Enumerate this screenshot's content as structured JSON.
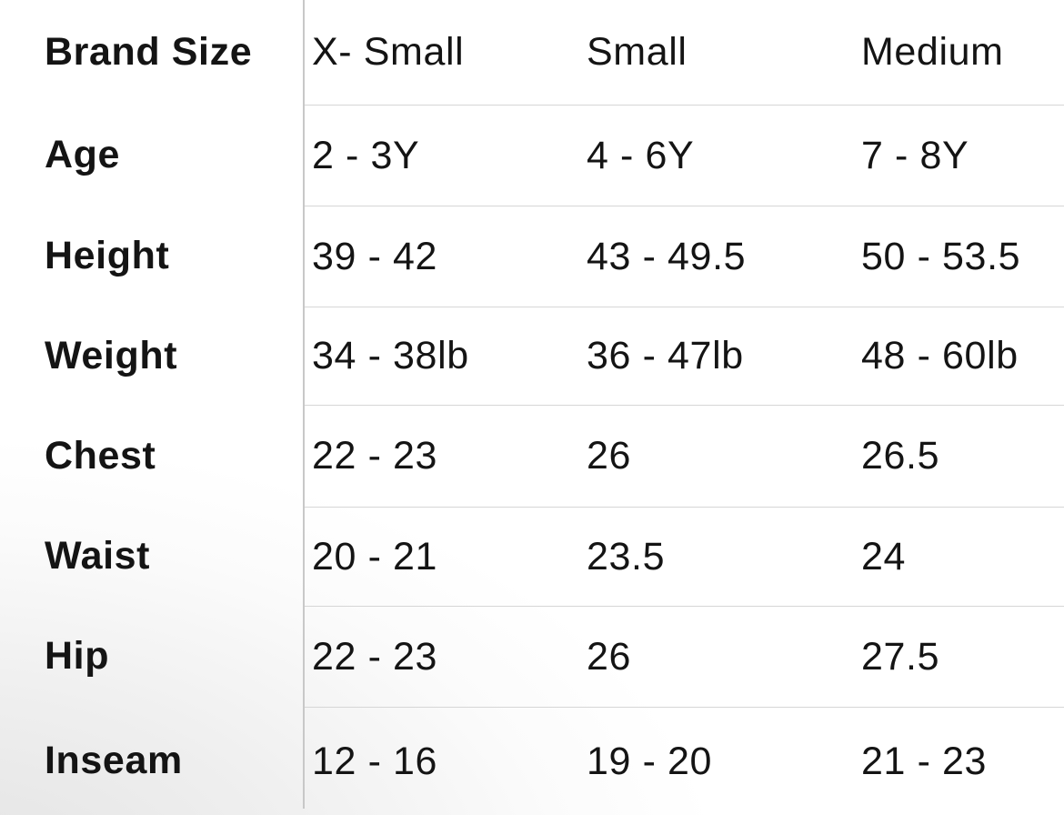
{
  "theme": {
    "text_color": "#141414",
    "divider_color": "#c8c8c8",
    "separator_color": "#d6d6d6",
    "bg_corner_color": "#e2e2e2"
  },
  "table": {
    "corner_label": "Brand Size",
    "columns": [
      "X- Small",
      "Small",
      "Medium"
    ],
    "rows": [
      {
        "label": "Age",
        "values": [
          "2 - 3Y",
          "4 - 6Y",
          "7 - 8Y"
        ]
      },
      {
        "label": "Height",
        "values": [
          "39 - 42",
          "43 - 49.5",
          "50 - 53.5"
        ]
      },
      {
        "label": "Weight",
        "values": [
          "34 - 38lb",
          "36 - 47lb",
          "48 - 60lb"
        ]
      },
      {
        "label": "Chest",
        "values": [
          "22 - 23",
          "26",
          "26.5"
        ]
      },
      {
        "label": "Waist",
        "values": [
          "20 - 21",
          "23.5",
          "24"
        ]
      },
      {
        "label": "Hip",
        "values": [
          "22 - 23",
          "26",
          "27.5"
        ]
      },
      {
        "label": "Inseam",
        "values": [
          "12 - 16",
          "19 - 20",
          "21 - 23"
        ]
      }
    ]
  }
}
